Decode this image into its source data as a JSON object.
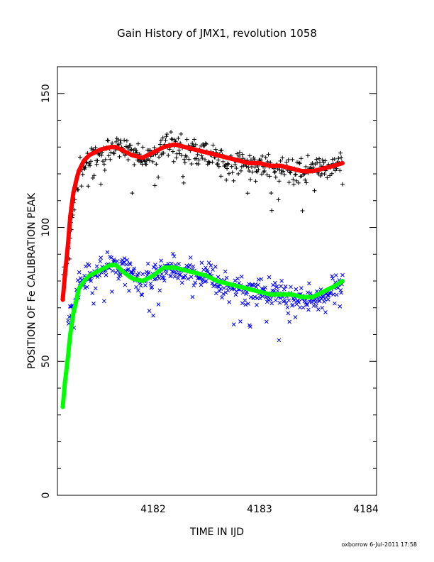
{
  "chart_data": {
    "type": "scatter",
    "title": "Gain History of JMX1, revolution 1058",
    "xlabel": "TIME IN IJD",
    "ylabel": "POSITION OF Fe CALIBRATION PEAK",
    "xlim": [
      4181.1,
      4184.1
    ],
    "ylim": [
      0,
      160
    ],
    "xticks": [
      4182,
      4183,
      4184
    ],
    "yticks": [
      0,
      50,
      100,
      150
    ],
    "grid": false,
    "legend": "none",
    "footer": "oxborrow  6-Jul-2011 17:58",
    "series": [
      {
        "marker": "+",
        "color": "#000000",
        "x": [
          4181.15,
          4181.3,
          4181.4,
          4181.5,
          4181.6,
          4181.7,
          4181.8,
          4181.9,
          4182.0,
          4182.1,
          4182.2,
          4182.3,
          4182.4,
          4182.5,
          4182.6,
          4182.7,
          4182.8,
          4182.9,
          4183.0,
          4183.1,
          4183.2,
          4183.3,
          4183.4,
          4183.5,
          4183.6,
          4183.7,
          4183.78
        ],
        "y": [
          78,
          120,
          126,
          128,
          130,
          131,
          128,
          126,
          128,
          131,
          131,
          129,
          128,
          127,
          126,
          125,
          124,
          124,
          123,
          123,
          122,
          122,
          121,
          121,
          122,
          123,
          124
        ],
        "spread": 8
      },
      {
        "marker": "+",
        "color": "#ff0000",
        "x": [
          4181.15,
          4181.17,
          4181.2,
          4181.22,
          4181.25,
          4181.28,
          4181.3,
          4181.35,
          4181.4,
          4181.5,
          4181.6,
          4181.65,
          4181.7,
          4181.8,
          4181.9,
          4182.0,
          4182.1,
          4182.2,
          4182.3,
          4182.4,
          4182.5,
          4182.6,
          4182.7,
          4182.8,
          4182.9,
          4183.0,
          4183.1,
          4183.2,
          4183.3,
          4183.4,
          4183.5,
          4183.6,
          4183.7,
          4183.78
        ],
        "y": [
          73,
          82,
          94,
          104,
          113,
          118,
          121,
          125,
          127,
          129,
          130,
          130,
          129,
          127,
          126,
          128,
          130,
          131,
          130,
          129,
          128,
          127,
          126,
          125,
          124,
          124,
          123,
          123,
          122,
          121,
          121,
          122,
          123,
          124
        ]
      },
      {
        "marker": "x",
        "color": "#0000ff",
        "x": [
          4181.2,
          4181.3,
          4181.4,
          4181.5,
          4181.6,
          4181.7,
          4181.8,
          4181.9,
          4182.0,
          4182.1,
          4182.2,
          4182.3,
          4182.4,
          4182.5,
          4182.6,
          4182.7,
          4182.8,
          4182.9,
          4183.0,
          4183.1,
          4183.2,
          4183.3,
          4183.4,
          4183.5,
          4183.6,
          4183.7,
          4183.78
        ],
        "y": [
          65,
          78,
          82,
          84,
          86,
          85,
          82,
          80,
          82,
          84,
          85,
          84,
          83,
          82,
          80,
          78,
          77,
          76,
          76,
          75,
          75,
          74,
          73,
          73,
          75,
          77,
          79
        ],
        "spread": 9
      },
      {
        "marker": "+",
        "color": "#00ff00",
        "x": [
          4181.15,
          4181.17,
          4181.2,
          4181.22,
          4181.25,
          4181.28,
          4181.3,
          4181.35,
          4181.4,
          4181.5,
          4181.6,
          4181.65,
          4181.7,
          4181.8,
          4181.9,
          4182.0,
          4182.1,
          4182.2,
          4182.3,
          4182.4,
          4182.5,
          4182.6,
          4182.7,
          4182.8,
          4182.9,
          4183.0,
          4183.1,
          4183.2,
          4183.3,
          4183.4,
          4183.5,
          4183.6,
          4183.7,
          4183.78
        ],
        "y": [
          33,
          42,
          52,
          60,
          68,
          73,
          77,
          80,
          82,
          84,
          86,
          86,
          84,
          81,
          80,
          82,
          85,
          85,
          84,
          83,
          82,
          80,
          79,
          78,
          77,
          76,
          75,
          75,
          75,
          74,
          74,
          76,
          78,
          80
        ]
      }
    ]
  }
}
